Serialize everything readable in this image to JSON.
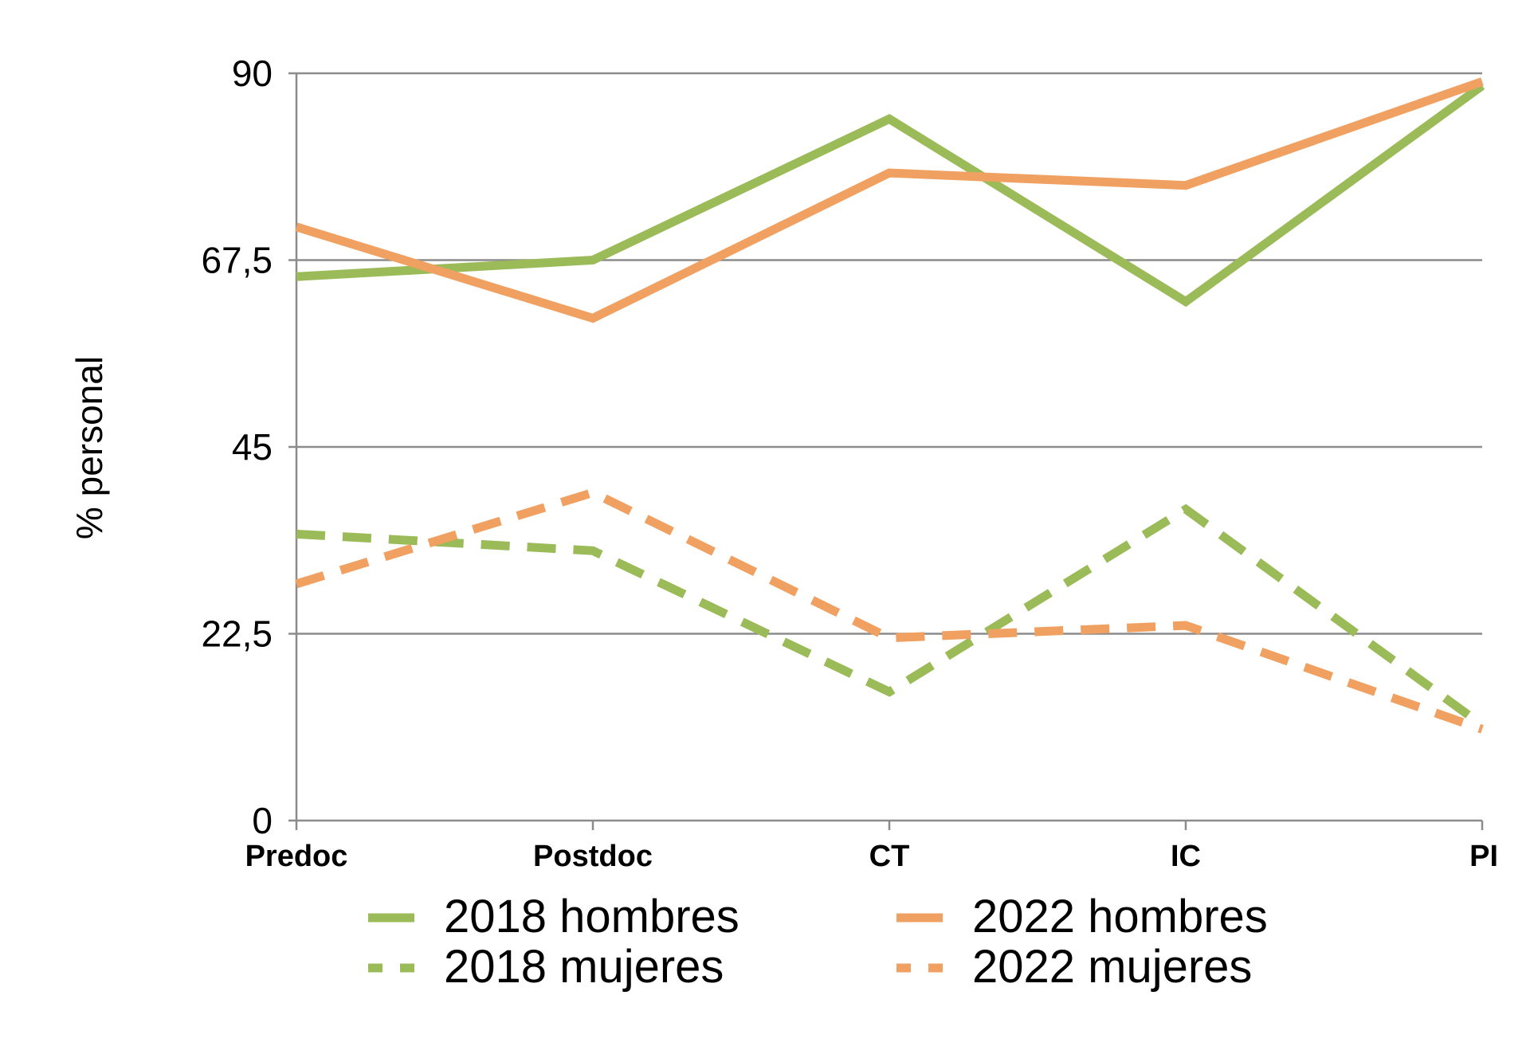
{
  "chart_data": {
    "type": "line",
    "title": "",
    "xlabel": "",
    "ylabel": "% personal",
    "categories": [
      "Predoc",
      "Postdoc",
      "CT",
      "IC",
      "PI"
    ],
    "ylim": [
      0,
      90
    ],
    "yticks": [
      "0",
      "22,5",
      "45",
      "67,5",
      "90"
    ],
    "ytick_values": [
      0,
      22.5,
      45,
      67.5,
      90
    ],
    "grid": "horizontal",
    "legend_placement": "bottom",
    "series": [
      {
        "name": "2018 hombres",
        "values": [
          65.5,
          67.5,
          84.5,
          62.5,
          88.5
        ],
        "color": "#9bbb59",
        "dash": "solid"
      },
      {
        "name": "2022 hombres",
        "values": [
          71.5,
          60.5,
          78.0,
          76.5,
          89.0
        ],
        "color": "#f0a060",
        "dash": "solid"
      },
      {
        "name": "2018 mujeres",
        "values": [
          34.5,
          32.5,
          15.5,
          37.5,
          11.5
        ],
        "color": "#9bbb59",
        "dash": "dashed"
      },
      {
        "name": "2022 mujeres",
        "values": [
          28.5,
          39.5,
          22.0,
          23.5,
          11.0
        ],
        "color": "#f0a060",
        "dash": "dashed"
      }
    ]
  }
}
